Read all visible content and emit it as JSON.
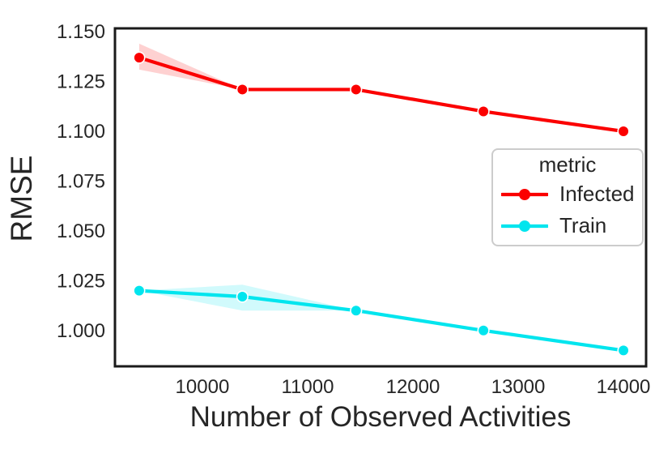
{
  "figure": {
    "background": "#ffffff",
    "frame_color": "#1a1a1a",
    "text_color": "#262626"
  },
  "chart_data": {
    "type": "line",
    "title": "",
    "xlabel": "Number of Observed Activities",
    "ylabel": "RMSE",
    "x": [
      9400,
      10380,
      11460,
      12670,
      14000
    ],
    "series": [
      {
        "name": "Infected",
        "color": "#fb0000",
        "values": [
          1.137,
          1.121,
          1.121,
          1.11,
          1.1
        ],
        "band_upper": [
          1.144,
          1.121,
          1.121,
          1.11,
          1.1
        ],
        "band_lower": [
          1.131,
          1.121,
          1.121,
          1.11,
          1.1
        ]
      },
      {
        "name": "Train",
        "color": "#00e5ee",
        "values": [
          1.02,
          1.017,
          1.01,
          1.0,
          0.99
        ],
        "band_upper": [
          1.02,
          1.023,
          1.01,
          1.0,
          0.99
        ],
        "band_lower": [
          1.02,
          1.01,
          1.01,
          1.0,
          0.99
        ]
      }
    ],
    "band_opacity": 0.18,
    "xticks": [
      {
        "value": 10000,
        "label": "10000"
      },
      {
        "value": 11000,
        "label": "11000"
      },
      {
        "value": 12000,
        "label": "12000"
      },
      {
        "value": 13000,
        "label": "13000"
      },
      {
        "value": 14000,
        "label": "14000"
      }
    ],
    "yticks": [
      {
        "value": 1.15,
        "label": "1.150"
      },
      {
        "value": 1.125,
        "label": "1.125"
      },
      {
        "value": 1.1,
        "label": "1.100"
      },
      {
        "value": 1.075,
        "label": "1.075"
      },
      {
        "value": 1.05,
        "label": "1.050"
      },
      {
        "value": 1.025,
        "label": "1.025"
      },
      {
        "value": 1.0,
        "label": "1.000"
      }
    ],
    "xlim": [
      9170,
      14215
    ],
    "ylim": [
      0.982,
      1.1517
    ],
    "grid": false,
    "legend": {
      "title": "metric",
      "position": "center right"
    }
  }
}
